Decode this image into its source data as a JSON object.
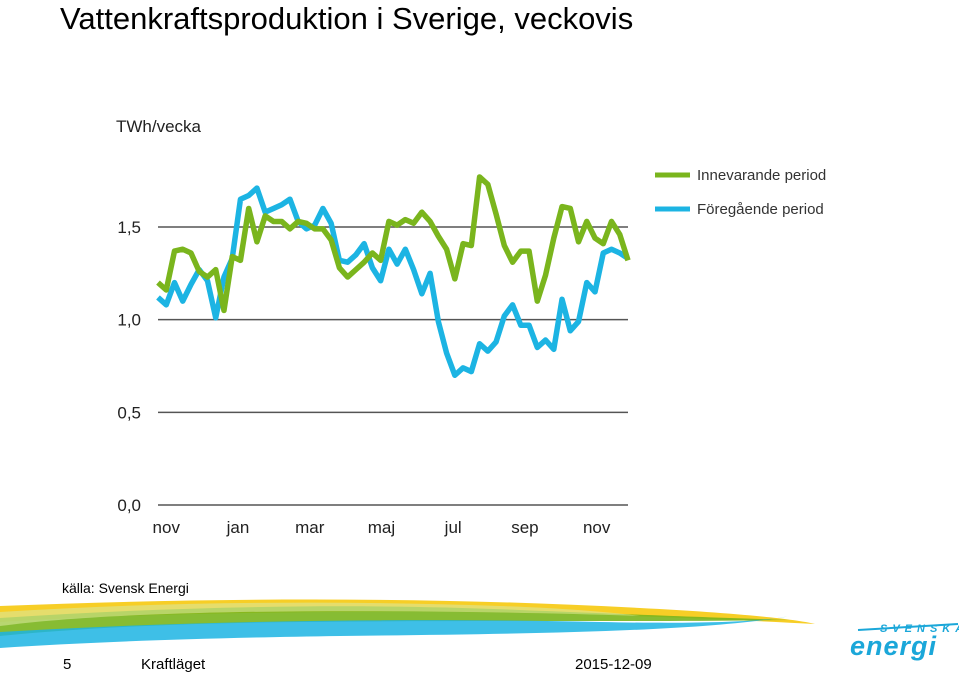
{
  "slide": {
    "title": "Vattenkraftsproduktion i Sverige, veckovis",
    "source": "källa: Svensk Energi",
    "footer": {
      "page": "5",
      "name": "Kraftläget",
      "date": "2015-12-09"
    },
    "logo": {
      "top": "SVENSKA",
      "bottom": "energi"
    }
  },
  "colors": {
    "current": "#7ab51d",
    "previous": "#1cb4e3",
    "gridline": "#555555",
    "logo": "#1ba7d9"
  },
  "chart_data": {
    "type": "line",
    "title": "Vattenkraftsproduktion i Sverige, veckovis",
    "ylabel": "TWh/vecka",
    "ylim": [
      0,
      1.5
    ],
    "yticks": [
      0,
      0.5,
      1.0,
      1.5
    ],
    "ytick_labels": [
      "0,0",
      "0,5",
      "1,0",
      "1,5"
    ],
    "xlim": [
      0,
      57
    ],
    "xticks": [
      1,
      9.7,
      18.4,
      27.1,
      35.8,
      44.5,
      53.2
    ],
    "xtick_labels": [
      "nov",
      "jan",
      "mar",
      "maj",
      "jul",
      "sep",
      "nov"
    ],
    "legend": "top-right",
    "series": [
      {
        "name": "Innevarande period",
        "color": "#7ab51d",
        "values": [
          1.2,
          1.16,
          1.37,
          1.38,
          1.36,
          1.26,
          1.23,
          1.27,
          1.05,
          1.34,
          1.32,
          1.6,
          1.42,
          1.56,
          1.53,
          1.53,
          1.49,
          1.53,
          1.52,
          1.49,
          1.49,
          1.43,
          1.28,
          1.23,
          1.27,
          1.31,
          1.36,
          1.32,
          1.53,
          1.51,
          1.54,
          1.52,
          1.58,
          1.53,
          1.45,
          1.38,
          1.22,
          1.41,
          1.4,
          1.77,
          1.73,
          1.57,
          1.4,
          1.31,
          1.37,
          1.37,
          1.1,
          1.24,
          1.44,
          1.61,
          1.6,
          1.42,
          1.53,
          1.44,
          1.41,
          1.53,
          1.46,
          1.32
        ]
      },
      {
        "name": "Föregående period",
        "color": "#1cb4e3",
        "values": [
          1.12,
          1.08,
          1.2,
          1.1,
          1.19,
          1.27,
          1.21,
          1.01,
          1.23,
          1.33,
          1.65,
          1.67,
          1.71,
          1.58,
          1.6,
          1.62,
          1.65,
          1.53,
          1.49,
          1.51,
          1.6,
          1.52,
          1.32,
          1.31,
          1.35,
          1.41,
          1.28,
          1.21,
          1.38,
          1.3,
          1.38,
          1.27,
          1.14,
          1.25,
          0.99,
          0.82,
          0.7,
          0.74,
          0.72,
          0.87,
          0.83,
          0.88,
          1.02,
          1.08,
          0.97,
          0.97,
          0.85,
          0.89,
          0.84,
          1.11,
          0.94,
          0.99,
          1.2,
          1.15,
          1.36,
          1.38,
          1.36,
          1.33
        ]
      }
    ]
  }
}
